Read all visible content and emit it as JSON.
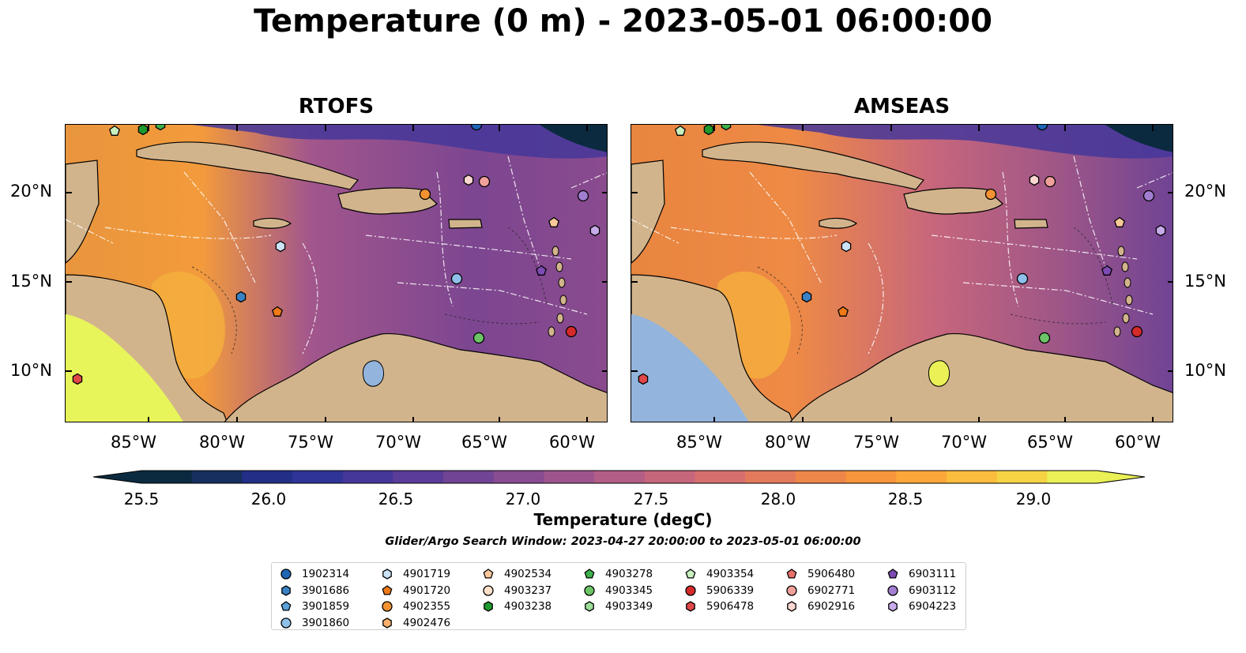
{
  "title": "Temperature (0 m) - 2023-05-01 06:00:00",
  "panels": [
    {
      "title": "RTOFS",
      "land_color": "#d2b48c",
      "west_fill": "#e8f55a"
    },
    {
      "title": "AMSEAS",
      "land_color": "#d2b48c",
      "west_fill": "#93b4dc"
    }
  ],
  "axes": {
    "x_ticks": [
      "85°W",
      "80°W",
      "75°W",
      "70°W",
      "65°W",
      "60°W"
    ],
    "y_ticks": [
      "20°N",
      "15°N",
      "10°N"
    ]
  },
  "colorbar": {
    "label": "Temperature (degC)",
    "ticks": [
      "25.5",
      "26.0",
      "26.5",
      "27.0",
      "27.5",
      "28.0",
      "28.5",
      "29.0"
    ],
    "colors": [
      "#0b2a3f",
      "#172f5e",
      "#232f86",
      "#2f3497",
      "#45379a",
      "#5b3c98",
      "#714495",
      "#884c91",
      "#9e558d",
      "#b35e86",
      "#c6667c",
      "#d66f6e",
      "#e47a5c",
      "#ef8649",
      "#f6953b",
      "#fca73a",
      "#fbbd3d",
      "#f5d344",
      "#eaf055"
    ],
    "extend_low": "#0b2a3f",
    "extend_high": "#eaf055"
  },
  "search_window": "Glider/Argo Search Window: 2023-04-27 20:00:00 to 2023-05-01 06:00:00",
  "legend": [
    [
      {
        "id": "1902314",
        "marker": "circle",
        "color": "#1f66b5"
      },
      {
        "id": "3901686",
        "marker": "hexagon",
        "color": "#3a82c4"
      },
      {
        "id": "3901859",
        "marker": "pentagon",
        "color": "#5ba0d6"
      },
      {
        "id": "3901860",
        "marker": "circle",
        "color": "#8ec0ea"
      }
    ],
    [
      {
        "id": "4901719",
        "marker": "hexagon",
        "color": "#cbe3f7"
      },
      {
        "id": "4901720",
        "marker": "pentagon",
        "color": "#ef7a17"
      },
      {
        "id": "4902355",
        "marker": "circle",
        "color": "#f39232"
      },
      {
        "id": "4902476",
        "marker": "hexagon",
        "color": "#f8b06a"
      }
    ],
    [
      {
        "id": "4902534",
        "marker": "pentagon",
        "color": "#fac89a"
      },
      {
        "id": "4903237",
        "marker": "circle",
        "color": "#fde0c8"
      },
      {
        "id": "4903238",
        "marker": "hexagon",
        "color": "#1f9a2e"
      }
    ],
    [
      {
        "id": "4903278",
        "marker": "pentagon",
        "color": "#3fb14a"
      },
      {
        "id": "4903345",
        "marker": "circle",
        "color": "#6cc466"
      },
      {
        "id": "4903349",
        "marker": "hexagon",
        "color": "#9cdc95"
      }
    ],
    [
      {
        "id": "4903354",
        "marker": "pentagon",
        "color": "#c9f1c0"
      },
      {
        "id": "5906339",
        "marker": "circle",
        "color": "#d42a2a"
      },
      {
        "id": "5906478",
        "marker": "hexagon",
        "color": "#e04848"
      }
    ],
    [
      {
        "id": "5906480",
        "marker": "pentagon",
        "color": "#e8706a"
      },
      {
        "id": "6902771",
        "marker": "circle",
        "color": "#f2a09a"
      },
      {
        "id": "6902916",
        "marker": "hexagon",
        "color": "#fbd6d0"
      }
    ],
    [
      {
        "id": "6903111",
        "marker": "pentagon",
        "color": "#7d4bb3"
      },
      {
        "id": "6903112",
        "marker": "circle",
        "color": "#a27ed0"
      },
      {
        "id": "6904223",
        "marker": "hexagon",
        "color": "#c8acea"
      }
    ]
  ]
}
